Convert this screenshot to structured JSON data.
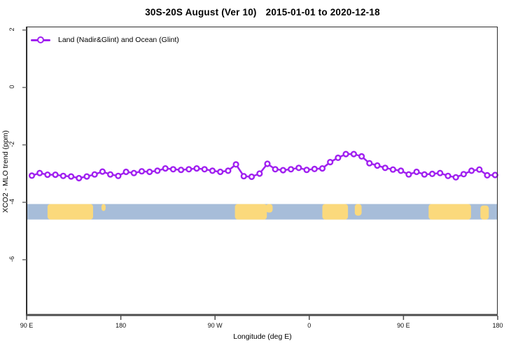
{
  "title": {
    "main": "30S-20S August (Ver 10)",
    "dates": "2015-01-01 to 2020-12-18"
  },
  "legend": {
    "label": "Land (Nadir&Glint) and Ocean (Glint)"
  },
  "axes": {
    "x_label": "Longitude (deg E)",
    "y_label": "XCO2 - MLO trend (ppm)",
    "x_ticks": [
      {
        "pos": 0,
        "label": "90 E"
      },
      {
        "pos": 90,
        "label": "180"
      },
      {
        "pos": 180,
        "label": "90 W"
      },
      {
        "pos": 270,
        "label": "0"
      },
      {
        "pos": 360,
        "label": "90 E"
      },
      {
        "pos": 450,
        "label": "180"
      }
    ],
    "y_ticks": [
      {
        "value": 2,
        "label": "2"
      },
      {
        "value": 0,
        "label": "0"
      },
      {
        "value": -2,
        "label": "-2"
      },
      {
        "value": -4,
        "label": "-4"
      },
      {
        "value": -6,
        "label": "-6"
      }
    ]
  },
  "chart_data": {
    "type": "line",
    "title": "30S-20S August (Ver 10)  2015-01-01 to 2020-12-18",
    "xlabel": "Longitude (deg E)",
    "ylabel": "XCO2 - MLO trend (ppm)",
    "x_axis_note": "x in degrees along wrapped longitude axis: 0=90E, 90=180, 180=90W, 270=0, 360=90E, 450=180",
    "xlim": [
      0,
      450
    ],
    "ylim": [
      -7.95,
      2.12
    ],
    "grid": false,
    "legend_position": "top-left-inside",
    "series": [
      {
        "name": "Land (Nadir&Glint) and Ocean (Glint)",
        "color": "#a020f0",
        "marker": "open-circle",
        "x_start_deg": 5,
        "x_step_deg": 7.5,
        "values": [
          -3.07,
          -2.98,
          -3.04,
          -3.04,
          -3.08,
          -3.1,
          -3.16,
          -3.1,
          -3.03,
          -2.93,
          -3.03,
          -3.08,
          -2.94,
          -2.98,
          -2.92,
          -2.94,
          -2.9,
          -2.82,
          -2.85,
          -2.87,
          -2.85,
          -2.82,
          -2.85,
          -2.9,
          -2.94,
          -2.9,
          -2.68,
          -3.09,
          -3.11,
          -3.0,
          -2.66,
          -2.85,
          -2.88,
          -2.85,
          -2.8,
          -2.87,
          -2.84,
          -2.82,
          -2.6,
          -2.45,
          -2.32,
          -2.32,
          -2.4,
          -2.64,
          -2.72,
          -2.8,
          -2.86,
          -2.9,
          -3.03,
          -2.94,
          -3.03,
          -3.01,
          -2.98,
          -3.08,
          -3.13,
          -3.02,
          -2.9,
          -2.86,
          -3.06,
          -3.05
        ]
      }
    ],
    "land_ocean_strip": {
      "description": "map band showing ocean (blue) and land (yellow) along 30S-20S",
      "ocean_color": "#a7bdd9",
      "land_color": "#fbd97c",
      "value_top": -4.06,
      "value_bottom": -4.6,
      "land_segments_deg": [
        {
          "x0": 20,
          "x1": 63.5,
          "t": 0,
          "b": 1
        },
        {
          "x0": 71.5,
          "x1": 75.5,
          "t": 0,
          "b": 0.45
        },
        {
          "x0": 199,
          "x1": 229.5,
          "t": 0,
          "b": 1
        },
        {
          "x0": 228.5,
          "x1": 235,
          "t": 0,
          "b": 0.55
        },
        {
          "x0": 282.5,
          "x1": 307,
          "t": 0,
          "b": 1
        },
        {
          "x0": 313.5,
          "x1": 320,
          "t": 0,
          "b": 0.75
        },
        {
          "x0": 384,
          "x1": 424.5,
          "t": 0,
          "b": 1
        },
        {
          "x0": 433.5,
          "x1": 441.5,
          "t": 0.1,
          "b": 1
        }
      ]
    }
  },
  "colors": {
    "line": "#a020f0",
    "ocean": "#a7bdd9",
    "land": "#fbd97c",
    "box": "#2e2e2e",
    "axis_bottom": "#4d4d4d",
    "text": "#000000",
    "background": "#ffffff"
  }
}
